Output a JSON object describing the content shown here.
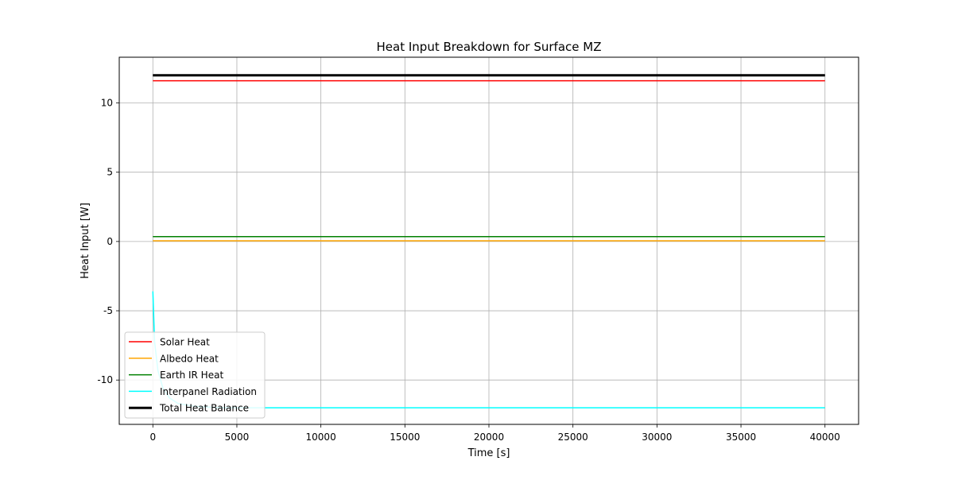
{
  "chart_data": {
    "type": "line",
    "title": "Heat Input Breakdown for Surface MZ",
    "xlabel": "Time [s]",
    "ylabel": "Heat Input [W]",
    "xlim": [
      -2000,
      42000
    ],
    "ylim": [
      -13.2,
      13.3
    ],
    "xticks": [
      0,
      5000,
      10000,
      15000,
      20000,
      25000,
      30000,
      35000,
      40000
    ],
    "yticks": [
      -10,
      -5,
      0,
      5,
      10
    ],
    "grid": true,
    "legend_position": "lower left",
    "series": [
      {
        "name": "Solar Heat",
        "color": "#ff0000",
        "line_width": 1.5,
        "x": [
          0,
          40000
        ],
        "y": [
          11.6,
          11.6
        ]
      },
      {
        "name": "Albedo Heat",
        "color": "#ffa500",
        "line_width": 1.5,
        "x": [
          0,
          40000
        ],
        "y": [
          0.05,
          0.05
        ]
      },
      {
        "name": "Earth IR Heat",
        "color": "#008000",
        "line_width": 1.5,
        "x": [
          0,
          40000
        ],
        "y": [
          0.35,
          0.35
        ]
      },
      {
        "name": "Interpanel Radiation",
        "color": "#00ffff",
        "line_width": 1.5,
        "x": [
          0,
          100,
          300,
          600,
          1000,
          1500,
          2500,
          4000,
          6000,
          10000,
          40000
        ],
        "y": [
          -3.6,
          -7.2,
          -9.3,
          -10.6,
          -11.3,
          -11.7,
          -11.9,
          -12.0,
          -12.0,
          -12.0,
          -12.0
        ]
      },
      {
        "name": "Total Heat Balance",
        "color": "#000000",
        "line_width": 3,
        "x": [
          0,
          40000
        ],
        "y": [
          12.0,
          12.0
        ]
      }
    ]
  }
}
